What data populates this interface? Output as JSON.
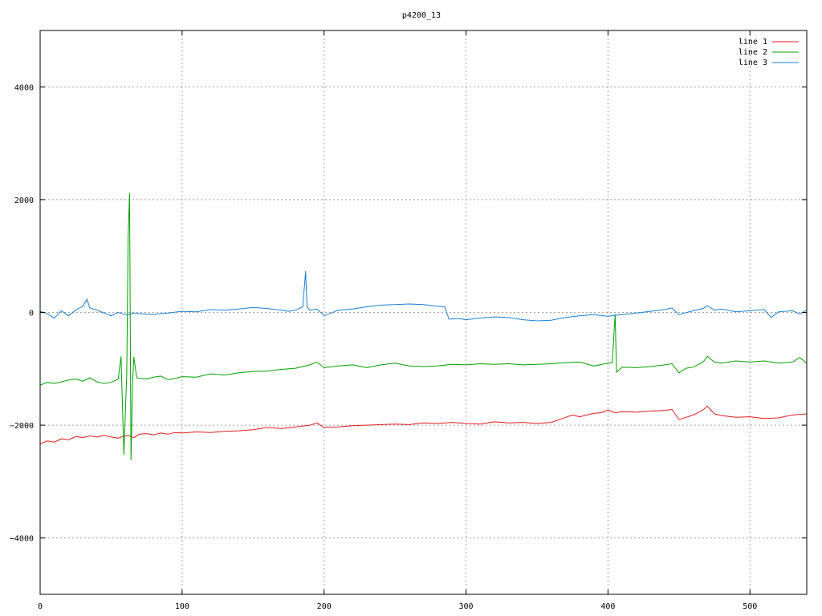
{
  "chart_data": {
    "type": "line",
    "title": "p4200_13",
    "xlabel": "",
    "ylabel": "",
    "xlim": [
      0,
      540
    ],
    "ylim": [
      -5000,
      5000
    ],
    "xticks": [
      0,
      100,
      200,
      300,
      400,
      500
    ],
    "yticks": [
      -4000,
      -2000,
      0,
      2000,
      4000
    ],
    "ytick_labels": [
      "-4000",
      "-2000",
      "0",
      "2000",
      "4000"
    ],
    "grid": true,
    "legend_position": "top-right",
    "series": [
      {
        "name": "line 1",
        "color": "#e41a1c",
        "points": [
          [
            0,
            -2330
          ],
          [
            5,
            -2280
          ],
          [
            10,
            -2300
          ],
          [
            15,
            -2240
          ],
          [
            20,
            -2260
          ],
          [
            25,
            -2200
          ],
          [
            30,
            -2220
          ],
          [
            35,
            -2190
          ],
          [
            40,
            -2210
          ],
          [
            45,
            -2180
          ],
          [
            50,
            -2210
          ],
          [
            55,
            -2230
          ],
          [
            58,
            -2200
          ],
          [
            62,
            -2180
          ],
          [
            66,
            -2220
          ],
          [
            70,
            -2160
          ],
          [
            75,
            -2150
          ],
          [
            80,
            -2170
          ],
          [
            85,
            -2140
          ],
          [
            90,
            -2160
          ],
          [
            95,
            -2130
          ],
          [
            100,
            -2140
          ],
          [
            110,
            -2120
          ],
          [
            120,
            -2130
          ],
          [
            130,
            -2110
          ],
          [
            140,
            -2100
          ],
          [
            150,
            -2080
          ],
          [
            160,
            -2040
          ],
          [
            170,
            -2060
          ],
          [
            180,
            -2030
          ],
          [
            190,
            -2000
          ],
          [
            195,
            -1960
          ],
          [
            200,
            -2040
          ],
          [
            210,
            -2030
          ],
          [
            220,
            -2010
          ],
          [
            230,
            -2000
          ],
          [
            240,
            -1990
          ],
          [
            250,
            -1980
          ],
          [
            260,
            -1990
          ],
          [
            270,
            -1960
          ],
          [
            280,
            -1970
          ],
          [
            290,
            -1950
          ],
          [
            300,
            -1970
          ],
          [
            310,
            -1980
          ],
          [
            320,
            -1940
          ],
          [
            330,
            -1960
          ],
          [
            340,
            -1950
          ],
          [
            350,
            -1970
          ],
          [
            360,
            -1950
          ],
          [
            368,
            -1880
          ],
          [
            375,
            -1820
          ],
          [
            380,
            -1850
          ],
          [
            390,
            -1790
          ],
          [
            395,
            -1780
          ],
          [
            400,
            -1730
          ],
          [
            405,
            -1780
          ],
          [
            410,
            -1760
          ],
          [
            420,
            -1770
          ],
          [
            430,
            -1750
          ],
          [
            440,
            -1740
          ],
          [
            445,
            -1720
          ],
          [
            450,
            -1900
          ],
          [
            455,
            -1860
          ],
          [
            460,
            -1820
          ],
          [
            467,
            -1730
          ],
          [
            470,
            -1660
          ],
          [
            475,
            -1800
          ],
          [
            480,
            -1830
          ],
          [
            490,
            -1860
          ],
          [
            500,
            -1850
          ],
          [
            510,
            -1880
          ],
          [
            520,
            -1870
          ],
          [
            530,
            -1820
          ],
          [
            540,
            -1800
          ]
        ]
      },
      {
        "name": "line 2",
        "color": "#00a000",
        "points": [
          [
            0,
            -1290
          ],
          [
            5,
            -1240
          ],
          [
            10,
            -1260
          ],
          [
            15,
            -1230
          ],
          [
            20,
            -1200
          ],
          [
            25,
            -1180
          ],
          [
            30,
            -1220
          ],
          [
            35,
            -1160
          ],
          [
            40,
            -1230
          ],
          [
            45,
            -1260
          ],
          [
            50,
            -1240
          ],
          [
            55,
            -1180
          ],
          [
            57,
            -780
          ],
          [
            59,
            -2520
          ],
          [
            61,
            -1100
          ],
          [
            62,
            1320
          ],
          [
            63,
            2120
          ],
          [
            64,
            -2620
          ],
          [
            65,
            -1300
          ],
          [
            66,
            -790
          ],
          [
            68,
            -1160
          ],
          [
            70,
            -1170
          ],
          [
            75,
            -1180
          ],
          [
            80,
            -1150
          ],
          [
            85,
            -1130
          ],
          [
            90,
            -1190
          ],
          [
            95,
            -1170
          ],
          [
            100,
            -1140
          ],
          [
            110,
            -1150
          ],
          [
            120,
            -1090
          ],
          [
            130,
            -1110
          ],
          [
            140,
            -1070
          ],
          [
            150,
            -1050
          ],
          [
            160,
            -1040
          ],
          [
            170,
            -1010
          ],
          [
            180,
            -990
          ],
          [
            190,
            -930
          ],
          [
            195,
            -880
          ],
          [
            200,
            -980
          ],
          [
            210,
            -950
          ],
          [
            220,
            -930
          ],
          [
            230,
            -980
          ],
          [
            240,
            -930
          ],
          [
            250,
            -900
          ],
          [
            260,
            -950
          ],
          [
            270,
            -960
          ],
          [
            280,
            -950
          ],
          [
            290,
            -920
          ],
          [
            300,
            -930
          ],
          [
            310,
            -910
          ],
          [
            320,
            -920
          ],
          [
            330,
            -910
          ],
          [
            340,
            -930
          ],
          [
            350,
            -920
          ],
          [
            360,
            -910
          ],
          [
            370,
            -890
          ],
          [
            380,
            -880
          ],
          [
            390,
            -950
          ],
          [
            400,
            -900
          ],
          [
            403,
            -890
          ],
          [
            405,
            -30
          ],
          [
            406,
            -1060
          ],
          [
            410,
            -970
          ],
          [
            420,
            -980
          ],
          [
            430,
            -960
          ],
          [
            440,
            -930
          ],
          [
            445,
            -910
          ],
          [
            450,
            -1070
          ],
          [
            455,
            -990
          ],
          [
            460,
            -970
          ],
          [
            467,
            -880
          ],
          [
            470,
            -780
          ],
          [
            475,
            -880
          ],
          [
            480,
            -900
          ],
          [
            490,
            -860
          ],
          [
            500,
            -880
          ],
          [
            510,
            -860
          ],
          [
            520,
            -900
          ],
          [
            530,
            -880
          ],
          [
            535,
            -800
          ],
          [
            540,
            -900
          ]
        ]
      },
      {
        "name": "line 3",
        "color": "#1a7fd4",
        "points": [
          [
            0,
            20
          ],
          [
            5,
            -20
          ],
          [
            10,
            -100
          ],
          [
            15,
            30
          ],
          [
            20,
            -60
          ],
          [
            25,
            40
          ],
          [
            30,
            110
          ],
          [
            33,
            230
          ],
          [
            35,
            80
          ],
          [
            40,
            40
          ],
          [
            45,
            -10
          ],
          [
            50,
            -60
          ],
          [
            55,
            0
          ],
          [
            60,
            -40
          ],
          [
            63,
            -40
          ],
          [
            65,
            -10
          ],
          [
            70,
            -20
          ],
          [
            75,
            -30
          ],
          [
            80,
            -40
          ],
          [
            85,
            -20
          ],
          [
            90,
            -10
          ],
          [
            100,
            20
          ],
          [
            110,
            10
          ],
          [
            120,
            50
          ],
          [
            130,
            40
          ],
          [
            140,
            60
          ],
          [
            150,
            90
          ],
          [
            160,
            70
          ],
          [
            170,
            40
          ],
          [
            175,
            20
          ],
          [
            180,
            40
          ],
          [
            185,
            100
          ],
          [
            187,
            730
          ],
          [
            188,
            100
          ],
          [
            190,
            40
          ],
          [
            195,
            60
          ],
          [
            200,
            -60
          ],
          [
            210,
            40
          ],
          [
            220,
            60
          ],
          [
            230,
            100
          ],
          [
            240,
            130
          ],
          [
            250,
            140
          ],
          [
            260,
            150
          ],
          [
            270,
            140
          ],
          [
            280,
            110
          ],
          [
            285,
            100
          ],
          [
            288,
            -120
          ],
          [
            295,
            -110
          ],
          [
            300,
            -130
          ],
          [
            310,
            -100
          ],
          [
            320,
            -80
          ],
          [
            330,
            -90
          ],
          [
            340,
            -130
          ],
          [
            350,
            -150
          ],
          [
            360,
            -140
          ],
          [
            370,
            -90
          ],
          [
            380,
            -60
          ],
          [
            390,
            -40
          ],
          [
            400,
            -70
          ],
          [
            405,
            -50
          ],
          [
            410,
            -40
          ],
          [
            420,
            -10
          ],
          [
            430,
            20
          ],
          [
            440,
            50
          ],
          [
            445,
            80
          ],
          [
            450,
            -40
          ],
          [
            460,
            30
          ],
          [
            467,
            70
          ],
          [
            470,
            120
          ],
          [
            475,
            40
          ],
          [
            480,
            60
          ],
          [
            490,
            10
          ],
          [
            500,
            30
          ],
          [
            510,
            50
          ],
          [
            515,
            -90
          ],
          [
            520,
            10
          ],
          [
            530,
            30
          ],
          [
            535,
            -30
          ],
          [
            540,
            40
          ]
        ]
      }
    ]
  }
}
